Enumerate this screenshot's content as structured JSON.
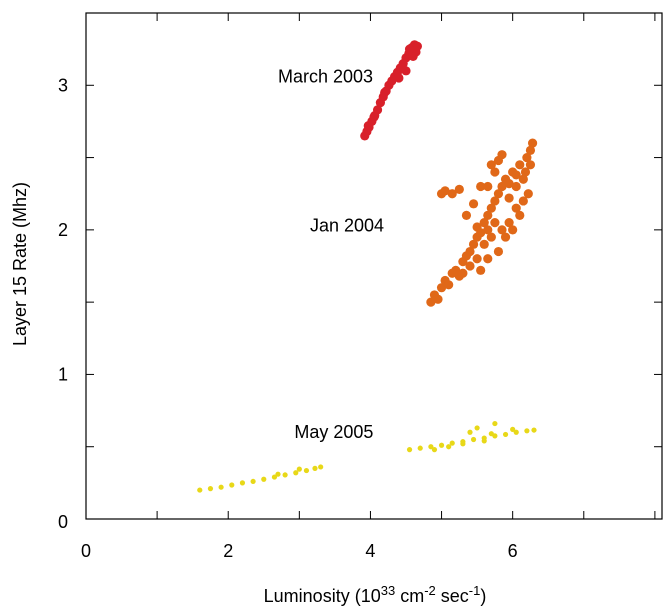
{
  "chart_data": {
    "type": "scatter",
    "title": "",
    "xlabel": {
      "pre": "Luminosity (10",
      "sup1": "33",
      "mid1": " cm",
      "sup2": "-2",
      "mid2": " sec",
      "sup3": "-1",
      "post": ")"
    },
    "ylabel": "Layer 15 Rate (Mhz)",
    "xlim": [
      0,
      8.1
    ],
    "ylim": [
      0,
      3.5
    ],
    "xticks": [
      0,
      2,
      4,
      6
    ],
    "yticks": [
      0,
      1,
      2,
      3
    ],
    "xtick_labels": [
      "0",
      "2",
      "4",
      "6"
    ],
    "ytick_labels": [
      "0",
      "1",
      "2",
      "3"
    ],
    "grid": false,
    "series": [
      {
        "name": "March 2003",
        "color": "#d8202a",
        "points": [
          [
            3.92,
            2.65
          ],
          [
            3.95,
            2.68
          ],
          [
            3.98,
            2.71
          ],
          [
            4.02,
            2.75
          ],
          [
            4.06,
            2.79
          ],
          [
            4.1,
            2.83
          ],
          [
            4.14,
            2.88
          ],
          [
            4.18,
            2.92
          ],
          [
            4.22,
            2.96
          ],
          [
            4.26,
            3.0
          ],
          [
            4.3,
            3.03
          ],
          [
            4.34,
            3.06
          ],
          [
            4.38,
            3.09
          ],
          [
            4.42,
            3.12
          ],
          [
            4.46,
            3.15
          ],
          [
            4.5,
            3.19
          ],
          [
            4.54,
            3.22
          ],
          [
            4.58,
            3.26
          ],
          [
            4.62,
            3.28
          ],
          [
            4.64,
            3.23
          ],
          [
            4.6,
            3.2
          ],
          [
            4.5,
            3.1
          ],
          [
            4.4,
            3.05
          ],
          [
            4.2,
            2.95
          ],
          [
            4.05,
            2.78
          ],
          [
            3.97,
            2.72
          ],
          [
            4.66,
            3.27
          ],
          [
            4.55,
            3.25
          ]
        ]
      },
      {
        "name": "Jan 2004",
        "color": "#e06818",
        "points": [
          [
            4.85,
            1.5
          ],
          [
            4.9,
            1.55
          ],
          [
            4.95,
            1.52
          ],
          [
            5.0,
            1.6
          ],
          [
            5.05,
            1.65
          ],
          [
            5.1,
            1.62
          ],
          [
            5.15,
            1.7
          ],
          [
            5.2,
            1.72
          ],
          [
            5.25,
            1.68
          ],
          [
            5.3,
            1.78
          ],
          [
            5.35,
            1.82
          ],
          [
            5.4,
            1.85
          ],
          [
            5.45,
            1.9
          ],
          [
            5.5,
            1.95
          ],
          [
            5.55,
            1.98
          ],
          [
            5.6,
            2.05
          ],
          [
            5.65,
            2.1
          ],
          [
            5.7,
            2.15
          ],
          [
            5.75,
            2.2
          ],
          [
            5.8,
            2.25
          ],
          [
            5.85,
            2.3
          ],
          [
            5.9,
            2.35
          ],
          [
            5.95,
            2.32
          ],
          [
            6.0,
            2.4
          ],
          [
            6.05,
            2.38
          ],
          [
            6.1,
            2.45
          ],
          [
            6.15,
            2.35
          ],
          [
            6.2,
            2.5
          ],
          [
            6.25,
            2.55
          ],
          [
            6.28,
            2.6
          ],
          [
            6.22,
            2.25
          ],
          [
            6.15,
            2.2
          ],
          [
            6.05,
            2.15
          ],
          [
            5.95,
            2.05
          ],
          [
            5.85,
            2.0
          ],
          [
            5.7,
            1.95
          ],
          [
            5.6,
            1.9
          ],
          [
            5.5,
            1.8
          ],
          [
            5.4,
            1.75
          ],
          [
            5.3,
            1.7
          ],
          [
            5.75,
            2.4
          ],
          [
            5.8,
            2.48
          ],
          [
            5.85,
            2.52
          ],
          [
            5.7,
            2.45
          ],
          [
            5.65,
            2.3
          ],
          [
            5.0,
            2.25
          ],
          [
            5.05,
            2.27
          ],
          [
            5.15,
            2.25
          ],
          [
            5.25,
            2.28
          ],
          [
            5.55,
            2.3
          ],
          [
            5.45,
            2.18
          ],
          [
            5.35,
            2.1
          ],
          [
            5.9,
            1.95
          ],
          [
            6.0,
            2.0
          ],
          [
            6.1,
            2.1
          ],
          [
            5.8,
            1.85
          ],
          [
            5.65,
            1.8
          ],
          [
            5.55,
            1.72
          ],
          [
            5.95,
            2.22
          ],
          [
            6.05,
            2.3
          ],
          [
            6.18,
            2.4
          ],
          [
            6.25,
            2.45
          ],
          [
            5.75,
            2.05
          ],
          [
            5.65,
            2.0
          ],
          [
            5.5,
            2.02
          ]
        ]
      },
      {
        "name": "May 2005",
        "color": "#e8d818",
        "points": [
          [
            1.6,
            0.2
          ],
          [
            1.75,
            0.21
          ],
          [
            1.9,
            0.22
          ],
          [
            2.05,
            0.235
          ],
          [
            2.2,
            0.25
          ],
          [
            2.35,
            0.26
          ],
          [
            2.5,
            0.275
          ],
          [
            2.65,
            0.29
          ],
          [
            2.8,
            0.305
          ],
          [
            2.95,
            0.32
          ],
          [
            3.1,
            0.335
          ],
          [
            3.22,
            0.35
          ],
          [
            3.3,
            0.36
          ],
          [
            3.0,
            0.345
          ],
          [
            2.7,
            0.31
          ],
          [
            4.55,
            0.48
          ],
          [
            4.7,
            0.49
          ],
          [
            4.85,
            0.5
          ],
          [
            5.0,
            0.51
          ],
          [
            5.15,
            0.525
          ],
          [
            5.3,
            0.535
          ],
          [
            5.45,
            0.55
          ],
          [
            5.6,
            0.56
          ],
          [
            5.75,
            0.575
          ],
          [
            5.9,
            0.585
          ],
          [
            6.05,
            0.6
          ],
          [
            6.2,
            0.61
          ],
          [
            6.3,
            0.615
          ],
          [
            5.4,
            0.6
          ],
          [
            5.5,
            0.63
          ],
          [
            5.75,
            0.66
          ],
          [
            5.3,
            0.52
          ],
          [
            5.1,
            0.5
          ],
          [
            4.9,
            0.48
          ],
          [
            5.7,
            0.59
          ],
          [
            6.0,
            0.62
          ],
          [
            5.6,
            0.54
          ]
        ]
      }
    ],
    "annotations": [
      {
        "text": "March 2003",
        "x": 2.7,
        "y": 3.02
      },
      {
        "text": "Jan 2004",
        "x": 3.15,
        "y": 1.99
      },
      {
        "text": "May 2005",
        "x": 2.93,
        "y": 0.56
      }
    ]
  }
}
